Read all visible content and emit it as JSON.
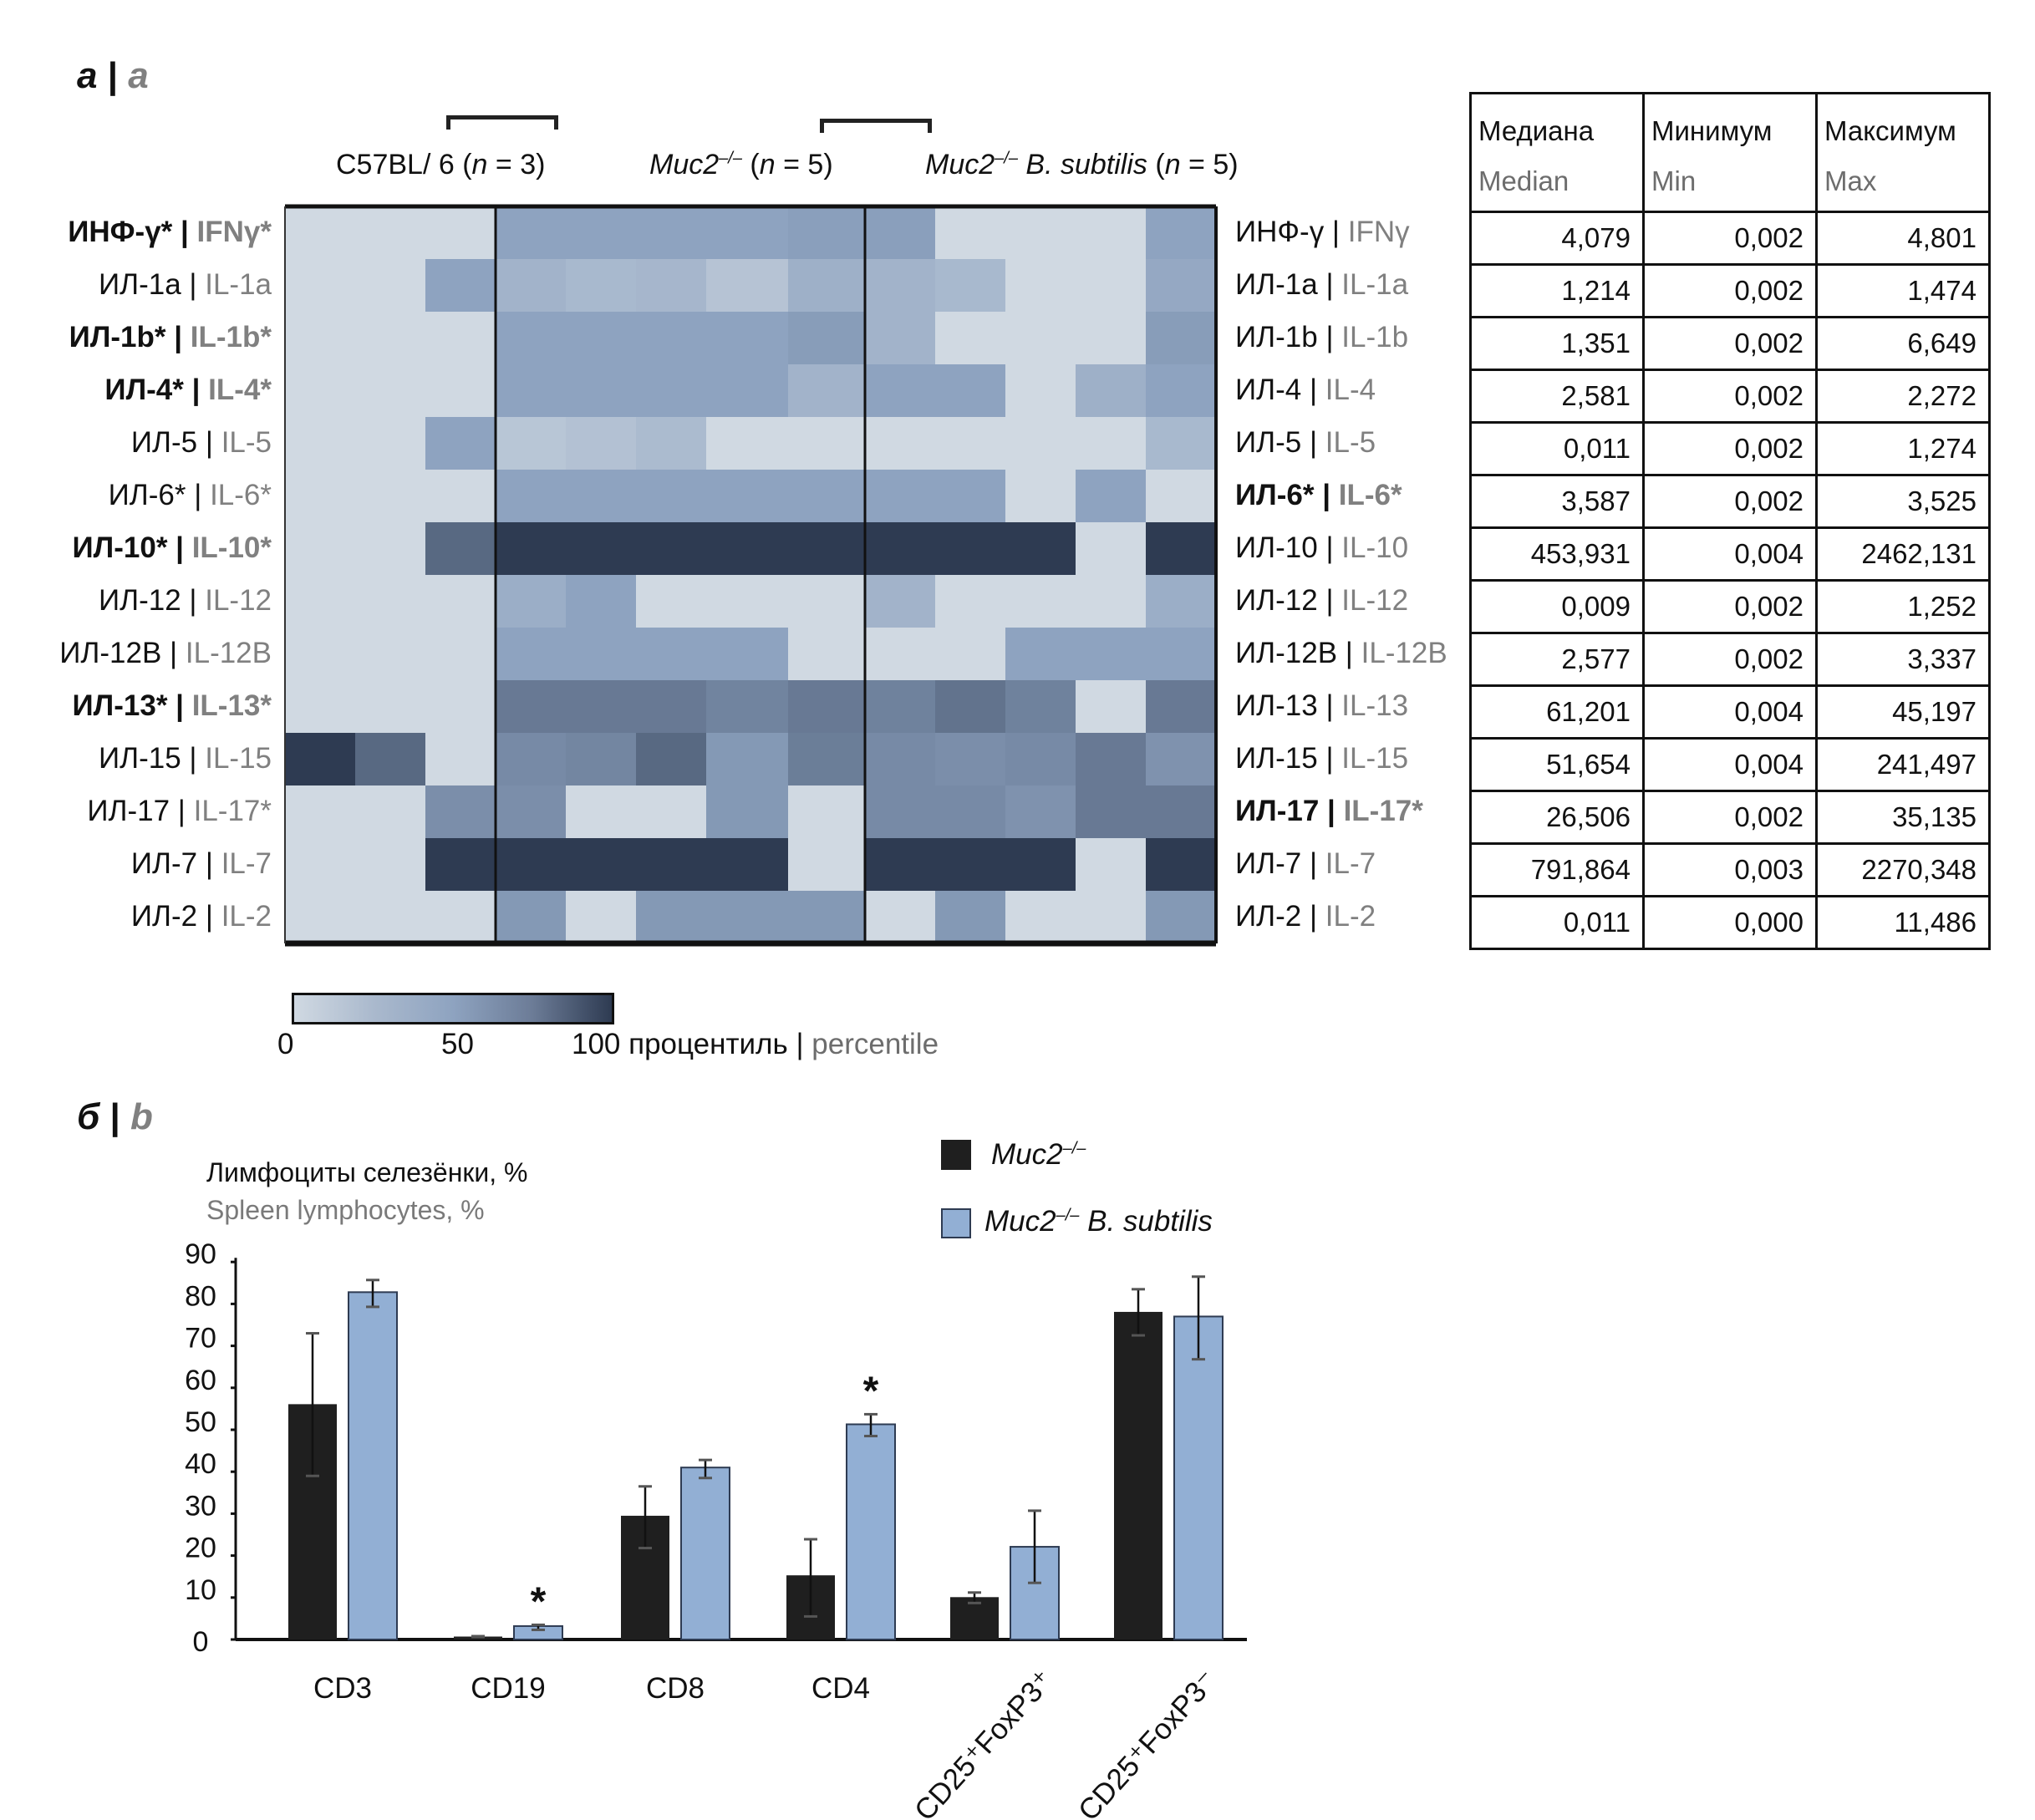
{
  "panel_a": {
    "label_ru": "а",
    "label_en": "a",
    "groups": [
      {
        "title": "C57BL/ 6",
        "n": "3",
        "italic": false
      },
      {
        "title": "Muc2",
        "sup": "–/–",
        "n": "5",
        "italic": true
      },
      {
        "title": "Muc2",
        "sup": "–/–",
        "title_suffix": " B. subtilis",
        "n": "5",
        "italic": true
      }
    ],
    "colorbar": {
      "ticks": [
        "0",
        "50",
        "100"
      ],
      "label_ru": "процентиль",
      "label_en": "percentile",
      "colors": {
        "low": "#d0d9e2",
        "mid": "#8ea3c0",
        "high": "#2e3b52"
      }
    },
    "table": {
      "headers": [
        {
          "ru": "Медиана",
          "en": "Median"
        },
        {
          "ru": "Минимум",
          "en": "Min"
        },
        {
          "ru": "Максимум",
          "en": "Max"
        }
      ],
      "rows": [
        [
          "4,079",
          "0,002",
          "4,801"
        ],
        [
          "1,214",
          "0,002",
          "1,474"
        ],
        [
          "1,351",
          "0,002",
          "6,649"
        ],
        [
          "2,581",
          "0,002",
          "2,272"
        ],
        [
          "0,011",
          "0,002",
          "1,274"
        ],
        [
          "3,587",
          "0,002",
          "3,525"
        ],
        [
          "453,931",
          "0,004",
          "2462,131"
        ],
        [
          "0,009",
          "0,002",
          "1,252"
        ],
        [
          "2,577",
          "0,002",
          "3,337"
        ],
        [
          "61,201",
          "0,004",
          "45,197"
        ],
        [
          "51,654",
          "0,004",
          "241,497"
        ],
        [
          "26,506",
          "0,002",
          "35,135"
        ],
        [
          "791,864",
          "0,003",
          "2270,348"
        ],
        [
          "0,011",
          "0,000",
          "11,486"
        ]
      ]
    }
  },
  "chart_data": [
    {
      "type": "heatmap",
      "title": "",
      "value_unit": "percentile",
      "range": [
        0,
        100
      ],
      "columns_groups": [
        "C57BL/6 (n = 3)",
        "Muc2–/– (n = 5)",
        "Muc2–/– B. subtilis (n = 5)"
      ],
      "column_group_sizes": [
        3,
        5,
        5
      ],
      "rows": [
        {
          "left_ru": "ИНФ-γ*",
          "left_en": "IFNγ*",
          "left_bold": true,
          "right_ru": "ИНФ-γ",
          "right_en": "IFNγ",
          "right_bold": false,
          "values": [
            0,
            0,
            0,
            50,
            50,
            50,
            50,
            52,
            52,
            0,
            0,
            0,
            50
          ]
        },
        {
          "left_ru": "ИЛ-1a",
          "left_en": "IL-1a",
          "left_bold": false,
          "right_ru": "ИЛ-1a",
          "right_en": "IL-1a",
          "right_bold": false,
          "values": [
            0,
            0,
            50,
            35,
            30,
            32,
            20,
            38,
            35,
            30,
            0,
            0,
            45
          ]
        },
        {
          "left_ru": "ИЛ-1b*",
          "left_en": "IL-1b*",
          "left_bold": true,
          "right_ru": "ИЛ-1b",
          "right_en": "IL-1b",
          "right_bold": false,
          "values": [
            0,
            0,
            0,
            50,
            50,
            50,
            50,
            53,
            35,
            0,
            0,
            0,
            53
          ]
        },
        {
          "left_ru": "ИЛ-4*",
          "left_en": "IL-4*",
          "left_bold": true,
          "right_ru": "ИЛ-4",
          "right_en": "IL-4",
          "right_bold": false,
          "values": [
            0,
            0,
            0,
            50,
            50,
            50,
            50,
            35,
            50,
            50,
            0,
            38,
            50
          ]
        },
        {
          "left_ru": "ИЛ-5",
          "left_en": "IL-5",
          "left_bold": false,
          "right_ru": "ИЛ-5",
          "right_en": "IL-5",
          "right_bold": false,
          "values": [
            0,
            0,
            50,
            18,
            22,
            28,
            0,
            0,
            0,
            0,
            0,
            0,
            30
          ]
        },
        {
          "left_ru": "ИЛ-6*",
          "left_en": "IL-6*",
          "left_bold": false,
          "right_ru": "ИЛ-6*",
          "right_en": "IL-6*",
          "right_bold": true,
          "values": [
            0,
            0,
            0,
            50,
            50,
            50,
            50,
            50,
            50,
            50,
            0,
            50,
            0
          ]
        },
        {
          "left_ru": "ИЛ-10*",
          "left_en": "IL-10*",
          "left_bold": true,
          "right_ru": "ИЛ-10",
          "right_en": "IL-10",
          "right_bold": false,
          "values": [
            0,
            0,
            78,
            100,
            100,
            100,
            100,
            100,
            100,
            100,
            100,
            0,
            100
          ]
        },
        {
          "left_ru": "ИЛ-12",
          "left_en": "IL-12",
          "left_bold": false,
          "right_ru": "ИЛ-12",
          "right_en": "IL-12",
          "right_bold": false,
          "values": [
            0,
            0,
            0,
            40,
            50,
            0,
            0,
            0,
            35,
            0,
            0,
            0,
            40
          ]
        },
        {
          "left_ru": "ИЛ-12B",
          "left_en": "IL-12B",
          "left_bold": false,
          "right_ru": "ИЛ-12B",
          "right_en": "IL-12B",
          "right_bold": false,
          "values": [
            0,
            0,
            0,
            50,
            50,
            50,
            50,
            0,
            0,
            0,
            50,
            50,
            50
          ]
        },
        {
          "left_ru": "ИЛ-13*",
          "left_en": "IL-13*",
          "left_bold": true,
          "right_ru": "ИЛ-13",
          "right_en": "IL-13",
          "right_bold": false,
          "values": [
            0,
            0,
            0,
            70,
            70,
            70,
            65,
            70,
            66,
            73,
            66,
            0,
            70
          ]
        },
        {
          "left_ru": "ИЛ-15",
          "left_en": "IL-15",
          "left_bold": false,
          "right_ru": "ИЛ-15",
          "right_en": "IL-15",
          "right_bold": false,
          "values": [
            100,
            78,
            0,
            62,
            64,
            78,
            55,
            68,
            62,
            60,
            62,
            70,
            58
          ]
        },
        {
          "left_ru": "ИЛ-17",
          "left_en": "IL-17*",
          "left_bold": false,
          "right_ru": "ИЛ-17",
          "right_en": "IL-17*",
          "right_bold": true,
          "values": [
            0,
            0,
            60,
            60,
            0,
            0,
            55,
            0,
            62,
            62,
            58,
            70,
            70
          ]
        },
        {
          "left_ru": "ИЛ-7",
          "left_en": "IL-7",
          "left_bold": false,
          "right_ru": "ИЛ-7",
          "right_en": "IL-7",
          "right_bold": false,
          "values": [
            0,
            0,
            100,
            100,
            100,
            100,
            100,
            0,
            100,
            100,
            100,
            0,
            100
          ]
        },
        {
          "left_ru": "ИЛ-2",
          "left_en": "IL-2",
          "left_bold": false,
          "right_ru": "ИЛ-2",
          "right_en": "IL-2",
          "right_bold": false,
          "values": [
            0,
            0,
            0,
            55,
            0,
            55,
            55,
            55,
            0,
            55,
            0,
            0,
            55
          ]
        }
      ]
    },
    {
      "type": "bar",
      "panel_label_ru": "б",
      "panel_label_en": "b",
      "ylabel_ru": "Лимфоциты селезёнки, %",
      "ylabel_en": "Spleen lymphocytes, %",
      "xlabel": "",
      "ylim": [
        0,
        90
      ],
      "yticks": [
        "0",
        "10",
        "20",
        "30",
        "40",
        "50",
        "60",
        "70",
        "80",
        "90"
      ],
      "categories": [
        "CD3",
        "CD19",
        "CD8",
        "CD4",
        "CD25⁺FoxP3⁺",
        "CD25⁺FoxP3⁻"
      ],
      "legend_position": "top-right",
      "series": [
        {
          "name": "Muc2–/–",
          "color": "#1f1f1f",
          "values": [
            56.1,
            0.7,
            29.5,
            15.3,
            10.1,
            78.1
          ],
          "err_low": [
            39.0,
            0.6,
            21.8,
            5.5,
            8.7,
            72.5
          ],
          "err_high": [
            73.0,
            0.8,
            36.5,
            23.9,
            11.2,
            83.5
          ]
        },
        {
          "name": "Muc2–/– B. subtilis",
          "color": "#92afd4",
          "values": [
            82.8,
            3.2,
            41.0,
            51.3,
            22.1,
            77.0
          ],
          "err_low": [
            79.3,
            2.3,
            38.5,
            48.5,
            13.5,
            66.8
          ],
          "err_high": [
            85.7,
            3.5,
            42.8,
            53.7,
            30.7,
            86.5
          ]
        }
      ],
      "significance_markers": [
        {
          "category": "CD19",
          "series": "Muc2–/– B. subtilis",
          "text": "*"
        },
        {
          "category": "CD4",
          "series": "Muc2–/– B. subtilis",
          "text": "*"
        }
      ]
    }
  ]
}
